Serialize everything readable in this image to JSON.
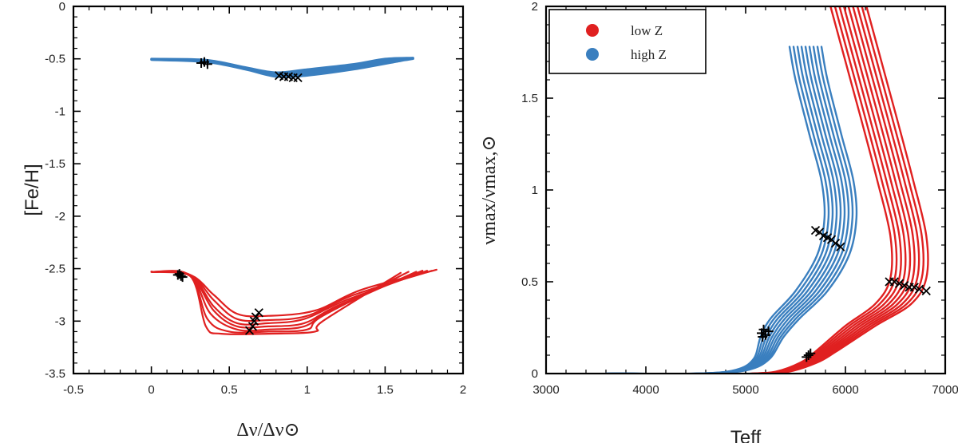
{
  "chart_data": [
    {
      "type": "line",
      "panel": "left",
      "ylabel": "[Fe/H]",
      "xlabel": "Δν/Δν⊙",
      "xlim": [
        -0.5,
        2
      ],
      "ylim": [
        -3.5,
        0
      ],
      "xticks": [
        "-0.5",
        "0",
        "0.5",
        "1",
        "1.5",
        "2"
      ],
      "yticks": [
        "0",
        "-0.5",
        "-1",
        "-1.5",
        "-2",
        "-2.5",
        "-3",
        "-3.5"
      ],
      "xtick_values": [
        -0.5,
        0,
        0.5,
        1,
        1.5,
        2
      ],
      "ytick_values": [
        0,
        -0.5,
        -1,
        -1.5,
        -2,
        -2.5,
        -3,
        -3.5
      ],
      "series": [
        {
          "name": "high Z",
          "color": "#3a7fbf",
          "band": {
            "lower": [
              [
                0.0,
                -0.51
              ],
              [
                0.35,
                -0.53
              ],
              [
                0.6,
                -0.6
              ],
              [
                0.8,
                -0.67
              ],
              [
                1.0,
                -0.66
              ],
              [
                1.3,
                -0.6
              ],
              [
                1.6,
                -0.52
              ],
              [
                1.68,
                -0.5
              ]
            ],
            "upper": [
              [
                0.0,
                -0.5
              ],
              [
                0.35,
                -0.51
              ],
              [
                0.6,
                -0.58
              ],
              [
                0.8,
                -0.63
              ],
              [
                1.0,
                -0.6
              ],
              [
                1.3,
                -0.55
              ],
              [
                1.5,
                -0.5
              ],
              [
                1.68,
                -0.49
              ]
            ]
          },
          "markers_plus": [
            [
              0.34,
              -0.53
            ],
            [
              0.36,
              -0.55
            ],
            [
              0.32,
              -0.54
            ]
          ],
          "markers_x": [
            [
              0.82,
              -0.66
            ],
            [
              0.85,
              -0.67
            ],
            [
              0.88,
              -0.67
            ],
            [
              0.91,
              -0.68
            ],
            [
              0.94,
              -0.68
            ]
          ]
        },
        {
          "name": "low Z",
          "color": "#e02020",
          "tracks": [
            {
              "points": [
                [
                  0.0,
                  -2.53
                ],
                [
                  0.25,
                  -2.56
                ],
                [
                  0.4,
                  -2.75
                ],
                [
                  0.55,
                  -2.93
                ],
                [
                  0.75,
                  -2.95
                ],
                [
                  1.05,
                  -2.9
                ],
                [
                  1.35,
                  -2.7
                ],
                [
                  1.83,
                  -2.51
                ]
              ]
            },
            {
              "points": [
                [
                  0.0,
                  -2.53
                ],
                [
                  0.25,
                  -2.56
                ],
                [
                  0.4,
                  -2.8
                ],
                [
                  0.55,
                  -2.98
                ],
                [
                  0.75,
                  -2.99
                ],
                [
                  1.0,
                  -2.95
                ],
                [
                  1.3,
                  -2.75
                ],
                [
                  1.8,
                  -2.52
                ]
              ]
            },
            {
              "points": [
                [
                  0.0,
                  -2.53
                ],
                [
                  0.25,
                  -2.56
                ],
                [
                  0.4,
                  -2.86
                ],
                [
                  0.55,
                  -3.02
                ],
                [
                  0.75,
                  -3.02
                ],
                [
                  0.98,
                  -2.98
                ],
                [
                  1.25,
                  -2.8
                ],
                [
                  1.77,
                  -2.52
                ]
              ]
            },
            {
              "points": [
                [
                  0.0,
                  -2.53
                ],
                [
                  0.25,
                  -2.57
                ],
                [
                  0.4,
                  -2.9
                ],
                [
                  0.55,
                  -3.05
                ],
                [
                  0.75,
                  -3.05
                ],
                [
                  0.98,
                  -3.02
                ],
                [
                  1.2,
                  -2.85
                ],
                [
                  1.74,
                  -2.52
                ]
              ]
            },
            {
              "points": [
                [
                  0.0,
                  -2.53
                ],
                [
                  0.25,
                  -2.57
                ],
                [
                  0.38,
                  -2.93
                ],
                [
                  0.55,
                  -3.08
                ],
                [
                  0.75,
                  -3.08
                ],
                [
                  0.98,
                  -3.05
                ],
                [
                  1.15,
                  -2.9
                ],
                [
                  1.7,
                  -2.53
                ]
              ]
            },
            {
              "points": [
                [
                  0.0,
                  -2.53
                ],
                [
                  0.25,
                  -2.57
                ],
                [
                  0.36,
                  -2.98
                ],
                [
                  0.5,
                  -3.1
                ],
                [
                  0.75,
                  -3.1
                ],
                [
                  1.0,
                  -3.08
                ],
                [
                  1.1,
                  -2.95
                ],
                [
                  1.65,
                  -2.53
                ]
              ]
            },
            {
              "points": [
                [
                  0.0,
                  -2.53
                ],
                [
                  0.25,
                  -2.57
                ],
                [
                  0.35,
                  -3.05
                ],
                [
                  0.45,
                  -3.12
                ],
                [
                  0.75,
                  -3.12
                ],
                [
                  1.05,
                  -3.1
                ],
                [
                  1.1,
                  -3.0
                ],
                [
                  1.6,
                  -2.54
                ]
              ]
            }
          ],
          "markers_plus": [
            [
              0.17,
              -2.56
            ],
            [
              0.19,
              -2.57
            ],
            [
              0.2,
              -2.58
            ],
            [
              0.18,
              -2.55
            ]
          ],
          "markers_x": [
            [
              0.63,
              -3.09
            ],
            [
              0.65,
              -3.05
            ],
            [
              0.66,
              -3.0
            ],
            [
              0.67,
              -2.96
            ],
            [
              0.69,
              -2.92
            ]
          ]
        }
      ]
    },
    {
      "type": "line",
      "panel": "right",
      "ylabel": "νmax/νmax,⊙",
      "xlabel": "Teff",
      "xlim": [
        3000,
        7000
      ],
      "ylim": [
        0,
        2
      ],
      "xticks": [
        "3000",
        "4000",
        "5000",
        "6000",
        "7000"
      ],
      "yticks": [
        "0",
        "0.5",
        "1",
        "1.5",
        "2"
      ],
      "xtick_values": [
        3000,
        4000,
        5000,
        6000,
        7000
      ],
      "ytick_values": [
        0,
        0.5,
        1,
        1.5,
        2
      ],
      "legend": {
        "position": "top-left",
        "entries": [
          {
            "label": "low Z",
            "color": "#e02020"
          },
          {
            "label": "high Z",
            "color": "#3a7fbf"
          }
        ]
      },
      "series": [
        {
          "name": "high Z",
          "color": "#3a7fbf",
          "base_track": [
            [
              3600,
              0.0
            ],
            [
              4500,
              0.0
            ],
            [
              4900,
              0.02
            ],
            [
              5080,
              0.08
            ],
            [
              5150,
              0.2
            ],
            [
              5250,
              0.3
            ],
            [
              5500,
              0.45
            ],
            [
              5720,
              0.65
            ],
            [
              5790,
              0.85
            ],
            [
              5760,
              1.05
            ],
            [
              5640,
              1.3
            ],
            [
              5500,
              1.6
            ],
            [
              5440,
              1.78
            ]
          ],
          "track_offsets": [
            0,
            40,
            80,
            120,
            160,
            200,
            240,
            280,
            320
          ],
          "markers_plus": [
            [
              5160,
              0.22
            ],
            [
              5180,
              0.24
            ],
            [
              5200,
              0.21
            ],
            [
              5230,
              0.23
            ],
            [
              5170,
              0.2
            ]
          ],
          "markers_x": [
            [
              5700,
              0.78
            ],
            [
              5740,
              0.77
            ],
            [
              5780,
              0.75
            ],
            [
              5820,
              0.74
            ],
            [
              5860,
              0.73
            ],
            [
              5900,
              0.71
            ],
            [
              5950,
              0.69
            ]
          ]
        },
        {
          "name": "low Z",
          "color": "#e02020",
          "base_track": [
            [
              5050,
              0.0
            ],
            [
              5300,
              0.01
            ],
            [
              5550,
              0.06
            ],
            [
              5700,
              0.12
            ],
            [
              6000,
              0.26
            ],
            [
              6300,
              0.38
            ],
            [
              6450,
              0.52
            ],
            [
              6450,
              0.75
            ],
            [
              6320,
              1.05
            ],
            [
              6150,
              1.4
            ],
            [
              5950,
              1.8
            ],
            [
              5850,
              2.0
            ]
          ],
          "track_offsets": [
            0,
            45,
            90,
            135,
            180,
            225,
            270,
            315,
            360
          ],
          "markers_plus": [
            [
              5610,
              0.09
            ],
            [
              5630,
              0.1
            ],
            [
              5650,
              0.11
            ]
          ],
          "markers_x": [
            [
              6440,
              0.5
            ],
            [
              6490,
              0.5
            ],
            [
              6540,
              0.49
            ],
            [
              6590,
              0.48
            ],
            [
              6640,
              0.47
            ],
            [
              6690,
              0.47
            ],
            [
              6740,
              0.46
            ],
            [
              6810,
              0.45
            ]
          ]
        }
      ]
    }
  ]
}
